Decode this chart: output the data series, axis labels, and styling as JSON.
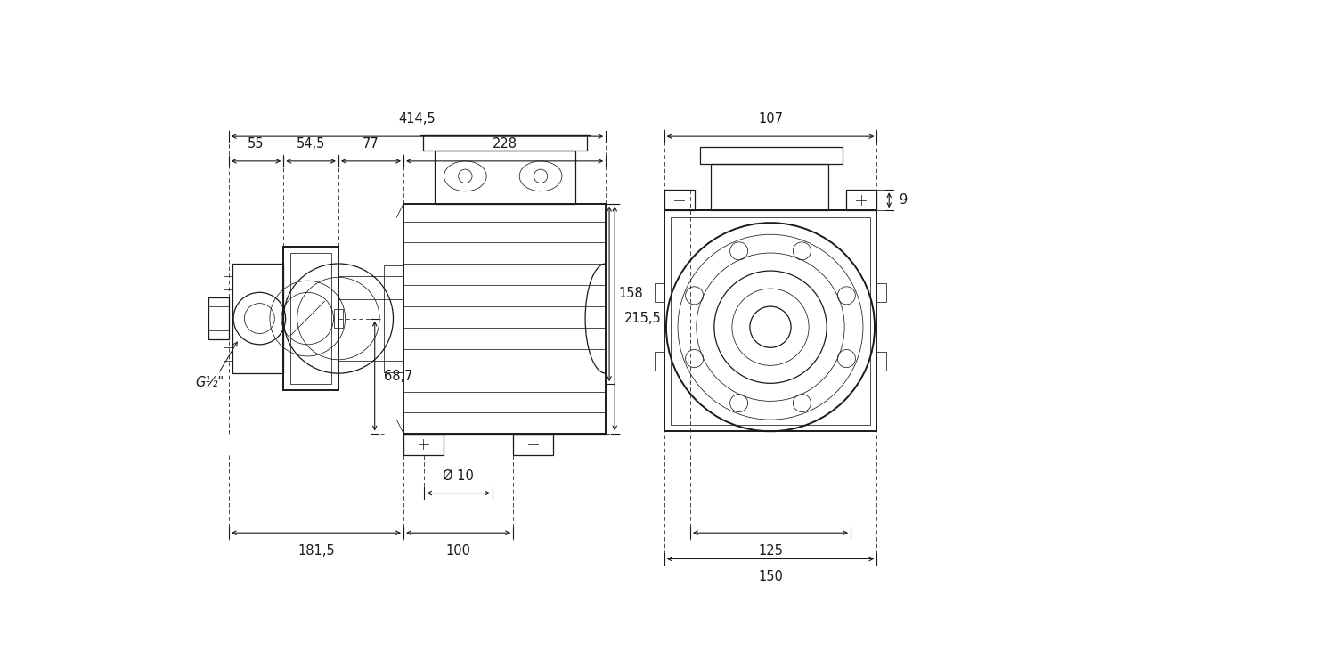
{
  "bg_color": "#ffffff",
  "lc": "#1a1a1a",
  "fs": 10.5,
  "lw": 0.9,
  "lwt": 1.4,
  "lwth": 0.55,
  "fig_w": 15.0,
  "fig_h": 7.5,
  "annotations": {
    "414_5": "414,5",
    "55": "55",
    "54_5": "54,5",
    "77": "77",
    "228": "228",
    "107": "107",
    "215_5": "215,5",
    "158": "158",
    "68_7": "68,7",
    "9": "9",
    "181_5": "181,5",
    "100": "100",
    "d10": "Ø 10",
    "125": "125",
    "150": "150",
    "g_half": "G½\""
  }
}
